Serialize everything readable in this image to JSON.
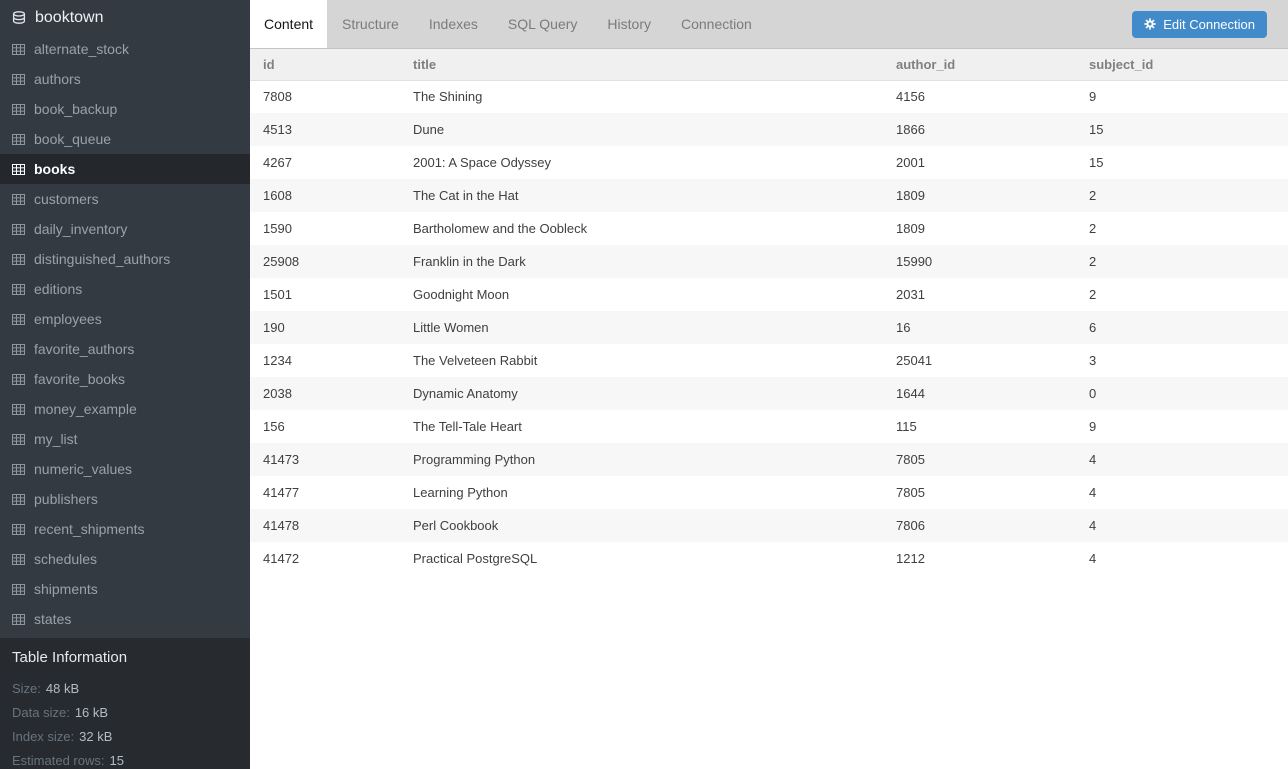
{
  "colors": {
    "accent_blue": "#428bca",
    "sidebar_bg": "#343a42",
    "sidebar_selected_bg": "#24282d",
    "table_info_bg": "#272b2f",
    "tabbar_bg": "#d5d5d5",
    "row_alt_bg": "#f7f7f7"
  },
  "sidebar": {
    "database": {
      "name": "booktown",
      "icon": "database-icon"
    },
    "table_icon": "table-icon",
    "selected_table": "books",
    "tables": [
      "alternate_stock",
      "authors",
      "book_backup",
      "book_queue",
      "books",
      "customers",
      "daily_inventory",
      "distinguished_authors",
      "editions",
      "employees",
      "favorite_authors",
      "favorite_books",
      "money_example",
      "my_list",
      "numeric_values",
      "publishers",
      "recent_shipments",
      "schedules",
      "shipments",
      "states"
    ],
    "table_info": {
      "title": "Table Information",
      "rows": [
        {
          "label": "Size:",
          "value": "48 kB"
        },
        {
          "label": "Data size:",
          "value": "16 kB"
        },
        {
          "label": "Index size:",
          "value": "32 kB"
        },
        {
          "label": "Estimated rows:",
          "value": "15"
        }
      ]
    }
  },
  "tabs": [
    {
      "label": "Content",
      "active": true
    },
    {
      "label": "Structure",
      "active": false
    },
    {
      "label": "Indexes",
      "active": false
    },
    {
      "label": "SQL Query",
      "active": false
    },
    {
      "label": "History",
      "active": false
    },
    {
      "label": "Connection",
      "active": false
    }
  ],
  "edit_connection": {
    "label": "Edit Connection",
    "icon": "gear-icon"
  },
  "table": {
    "columns": [
      "id",
      "title",
      "author_id",
      "subject_id"
    ],
    "rows": [
      [
        "7808",
        "The Shining",
        "4156",
        "9"
      ],
      [
        "4513",
        "Dune",
        "1866",
        "15"
      ],
      [
        "4267",
        "2001: A Space Odyssey",
        "2001",
        "15"
      ],
      [
        "1608",
        "The Cat in the Hat",
        "1809",
        "2"
      ],
      [
        "1590",
        "Bartholomew and the Oobleck",
        "1809",
        "2"
      ],
      [
        "25908",
        "Franklin in the Dark",
        "15990",
        "2"
      ],
      [
        "1501",
        "Goodnight Moon",
        "2031",
        "2"
      ],
      [
        "190",
        "Little Women",
        "16",
        "6"
      ],
      [
        "1234",
        "The Velveteen Rabbit",
        "25041",
        "3"
      ],
      [
        "2038",
        "Dynamic Anatomy",
        "1644",
        "0"
      ],
      [
        "156",
        "The Tell-Tale Heart",
        "115",
        "9"
      ],
      [
        "41473",
        "Programming Python",
        "7805",
        "4"
      ],
      [
        "41477",
        "Learning Python",
        "7805",
        "4"
      ],
      [
        "41478",
        "Perl Cookbook",
        "7806",
        "4"
      ],
      [
        "41472",
        "Practical PostgreSQL",
        "1212",
        "4"
      ]
    ]
  }
}
